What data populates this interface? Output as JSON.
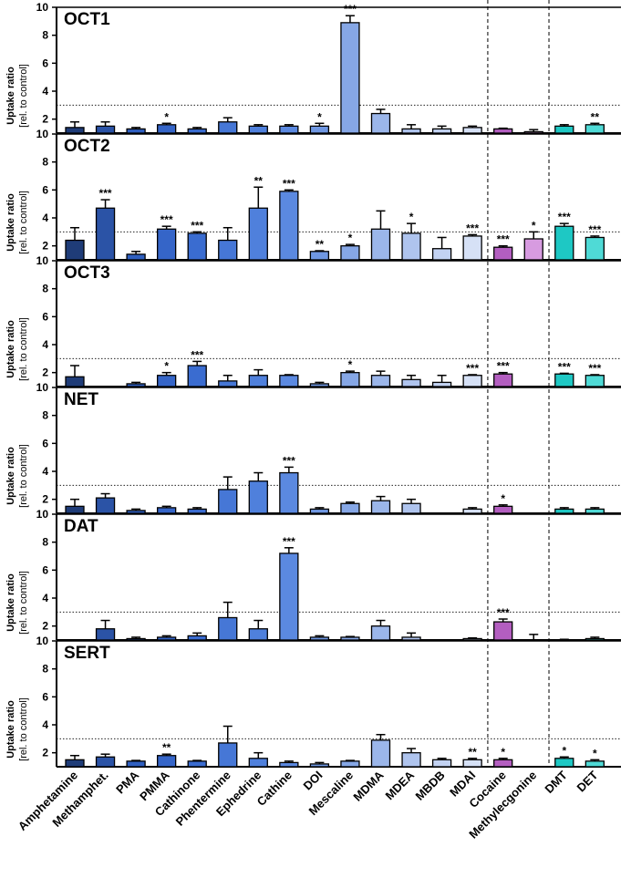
{
  "chart_data": {
    "type": "bar",
    "ylabel": "Uptake ratio",
    "ylabel_sub": "[rel. to control]",
    "yticks": [
      2,
      4,
      6,
      8,
      10
    ],
    "ylim": [
      1,
      10
    ],
    "reference_line": 3,
    "categories": [
      "Amphetamine",
      "Methamphet.",
      "PMA",
      "PMMA",
      "Cathinone",
      "Phentermine",
      "Ephedrine",
      "Cathine",
      "DOI",
      "Mescaline",
      "MDMA",
      "MDEA",
      "MBDB",
      "MDAI",
      "Cocaine",
      "Methylecgonine",
      "DMT",
      "DET"
    ],
    "colors": [
      "#1f3c78",
      "#2b53a6",
      "#2f5fc0",
      "#3565c8",
      "#3a6cd0",
      "#4677d6",
      "#4f80dc",
      "#5b89e0",
      "#6f97e2",
      "#86a7e6",
      "#9bb6ea",
      "#afc4ee",
      "#c2d2f2",
      "#d6e1f6",
      "#b35ec0",
      "#d79be0",
      "#1ec8c4",
      "#4fdad6"
    ],
    "series": [
      {
        "name": "OCT1",
        "values": [
          1.4,
          1.5,
          1.3,
          1.6,
          1.3,
          1.8,
          1.5,
          1.5,
          1.5,
          8.9,
          2.4,
          1.3,
          1.3,
          1.4,
          1.3,
          1.1,
          1.5,
          1.6
        ],
        "errors": [
          0.4,
          0.3,
          0.1,
          0.1,
          0.1,
          0.3,
          0.1,
          0.1,
          0.2,
          0.5,
          0.3,
          0.3,
          0.2,
          0.1,
          0.05,
          0.15,
          0.1,
          0.1
        ],
        "significance": [
          "",
          "",
          "",
          "*",
          "",
          "",
          "",
          "",
          "*",
          "***",
          "",
          "",
          "",
          "",
          "",
          "",
          "",
          "**"
        ]
      },
      {
        "name": "OCT2",
        "values": [
          2.4,
          4.7,
          1.4,
          3.2,
          2.9,
          2.4,
          4.7,
          5.9,
          1.6,
          2.0,
          3.2,
          2.9,
          1.8,
          2.7,
          1.9,
          2.5,
          3.4,
          2.6
        ],
        "errors": [
          0.9,
          0.6,
          0.2,
          0.2,
          0.1,
          0.9,
          1.5,
          0.1,
          0.05,
          0.1,
          1.3,
          0.7,
          0.8,
          0.1,
          0.1,
          0.5,
          0.2,
          0.1
        ],
        "significance": [
          "",
          "***",
          "",
          "***",
          "***",
          "",
          "**",
          "***",
          "**",
          "*",
          "",
          "*",
          "",
          "***",
          "***",
          "*",
          "***",
          "***"
        ]
      },
      {
        "name": "OCT3",
        "values": [
          1.7,
          1.0,
          1.2,
          1.8,
          2.5,
          1.4,
          1.8,
          1.8,
          1.2,
          2.0,
          1.8,
          1.5,
          1.3,
          1.8,
          1.9,
          1.0,
          1.9,
          1.8
        ],
        "errors": [
          0.8,
          0.0,
          0.1,
          0.2,
          0.3,
          0.4,
          0.4,
          0.05,
          0.1,
          0.1,
          0.3,
          0.3,
          0.5,
          0.05,
          0.1,
          0.0,
          0.05,
          0.05
        ],
        "significance": [
          "",
          "",
          "",
          "*",
          "***",
          "",
          "",
          "",
          "",
          "*",
          "",
          "",
          "",
          "***",
          "***",
          "",
          "***",
          "***"
        ]
      },
      {
        "name": "NET",
        "values": [
          1.5,
          2.1,
          1.2,
          1.4,
          1.3,
          2.7,
          3.3,
          3.9,
          1.3,
          1.7,
          1.9,
          1.7,
          1.0,
          1.3,
          1.5,
          1.0,
          1.3,
          1.3
        ],
        "errors": [
          0.5,
          0.3,
          0.1,
          0.1,
          0.1,
          0.9,
          0.6,
          0.4,
          0.1,
          0.1,
          0.3,
          0.3,
          0.0,
          0.1,
          0.1,
          0.0,
          0.1,
          0.1
        ],
        "significance": [
          "",
          "",
          "",
          "",
          "",
          "",
          "",
          "***",
          "",
          "",
          "",
          "",
          "",
          "",
          "*",
          "",
          "",
          ""
        ]
      },
      {
        "name": "DAT",
        "values": [
          1.0,
          1.8,
          1.1,
          1.2,
          1.3,
          2.6,
          1.8,
          7.2,
          1.2,
          1.2,
          2.0,
          1.2,
          1.0,
          1.1,
          2.3,
          1.0,
          1.0,
          1.1
        ],
        "errors": [
          0.0,
          0.6,
          0.1,
          0.1,
          0.2,
          1.1,
          0.6,
          0.4,
          0.1,
          0.05,
          0.4,
          0.3,
          0.0,
          0.05,
          0.2,
          0.4,
          0.05,
          0.1
        ],
        "significance": [
          "",
          "",
          "",
          "",
          "",
          "",
          "",
          "***",
          "",
          "",
          "",
          "",
          "",
          "",
          "***",
          "",
          "",
          ""
        ]
      },
      {
        "name": "SERT",
        "values": [
          1.5,
          1.7,
          1.4,
          1.8,
          1.4,
          2.7,
          1.6,
          1.3,
          1.2,
          1.4,
          2.9,
          2.0,
          1.5,
          1.5,
          1.5,
          1.0,
          1.6,
          1.4
        ],
        "errors": [
          0.3,
          0.2,
          0.05,
          0.1,
          0.05,
          1.2,
          0.4,
          0.1,
          0.1,
          0.05,
          0.4,
          0.3,
          0.1,
          0.1,
          0.1,
          0.0,
          0.1,
          0.1
        ],
        "significance": [
          "",
          "",
          "",
          "**",
          "",
          "",
          "",
          "",
          "",
          "",
          "",
          "",
          "",
          "**",
          "*",
          "",
          "*",
          "*"
        ]
      }
    ]
  }
}
